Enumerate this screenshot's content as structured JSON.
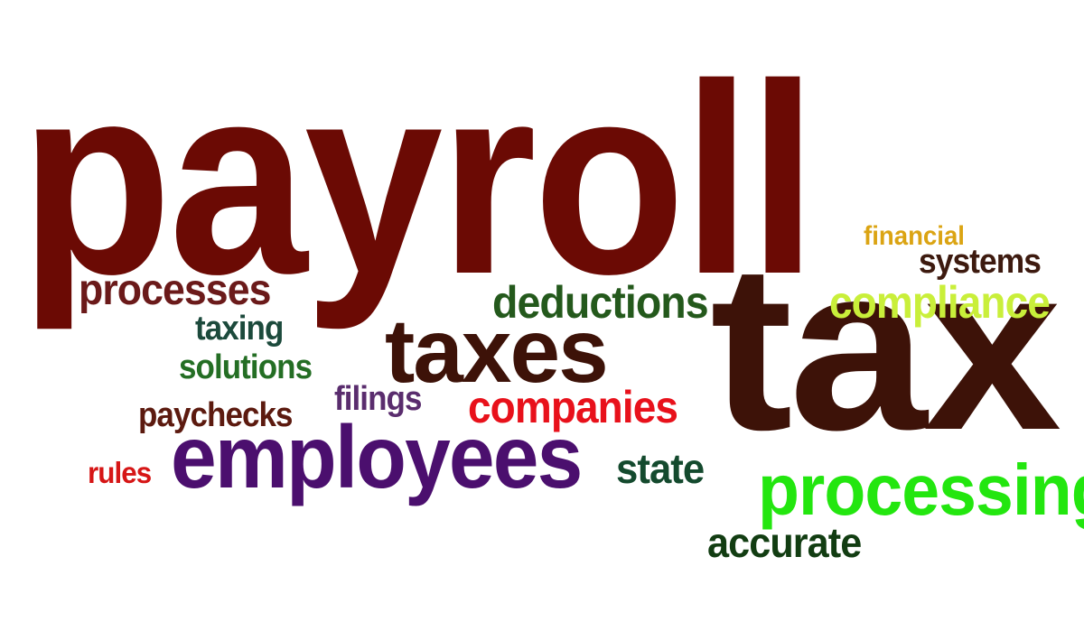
{
  "words": {
    "payroll": {
      "text": "payroll",
      "color": "#6b0a04"
    },
    "tax": {
      "text": "tax",
      "color": "#3d1208"
    },
    "taxes": {
      "text": "taxes",
      "color": "#3d1208"
    },
    "employees": {
      "text": "employees",
      "color": "#4b0f6e"
    },
    "processing": {
      "text": "processing",
      "color": "#23e60f"
    },
    "deductions": {
      "text": "deductions",
      "color": "#24591c"
    },
    "compliance": {
      "text": "compliance",
      "color": "#c9ef3a"
    },
    "companies": {
      "text": "companies",
      "color": "#e8111b"
    },
    "processes": {
      "text": "processes",
      "color": "#6b1a1a"
    },
    "accurate": {
      "text": "accurate",
      "color": "#123d12"
    },
    "state": {
      "text": "state",
      "color": "#144a2e"
    },
    "paychecks": {
      "text": "paychecks",
      "color": "#5c1a0f"
    },
    "filings": {
      "text": "filings",
      "color": "#5a2d6e"
    },
    "solutions": {
      "text": "solutions",
      "color": "#246e24"
    },
    "taxing": {
      "text": "taxing",
      "color": "#1c4a3c"
    },
    "systems": {
      "text": "systems",
      "color": "#3d1a0f"
    },
    "financial": {
      "text": "financial",
      "color": "#dba413"
    },
    "rules": {
      "text": "rules",
      "color": "#d61616"
    }
  }
}
